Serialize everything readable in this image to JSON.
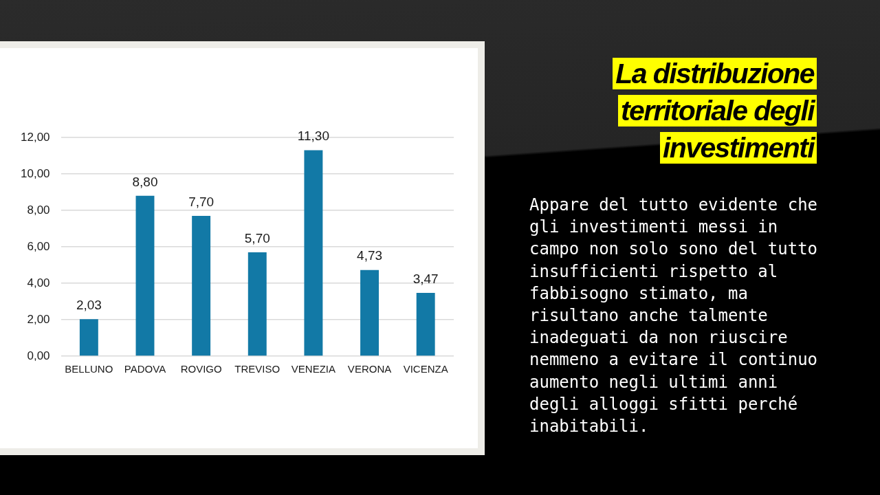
{
  "chart_data": {
    "type": "bar",
    "title": "La distribuzione territoriale degli investimenti",
    "categories": [
      "BELLUNO",
      "PADOVA",
      "ROVIGO",
      "TREVISO",
      "VENEZIA",
      "VERONA",
      "VICENZA"
    ],
    "values": [
      2.03,
      8.8,
      7.7,
      5.7,
      11.3,
      4.73,
      3.47
    ],
    "value_labels": [
      "2,03",
      "8,80",
      "7,70",
      "5,70",
      "11,30",
      "4,73",
      "3,47"
    ],
    "color": "#1279a6",
    "ylim": [
      0,
      12
    ],
    "yticks": [
      {
        "value": 0,
        "label": "0,00"
      },
      {
        "value": 2,
        "label": "2,00"
      },
      {
        "value": 4,
        "label": "4,00"
      },
      {
        "value": 6,
        "label": "6,00"
      },
      {
        "value": 8,
        "label": "8,00"
      },
      {
        "value": 10,
        "label": "10,00"
      },
      {
        "value": 12,
        "label": "12,00"
      }
    ],
    "grid": "y",
    "annotations": [
      "Appare del tutto evidente che gli investimenti messi in campo non solo sono del tutto insufficienti rispetto al fabbisogno stimato, ma risultano anche talmente inadeguati da non riuscire nemmeno a evitare il continuo aumento negli ultimi anni degli alloggi sfitti perché inabitabili."
    ]
  }
}
